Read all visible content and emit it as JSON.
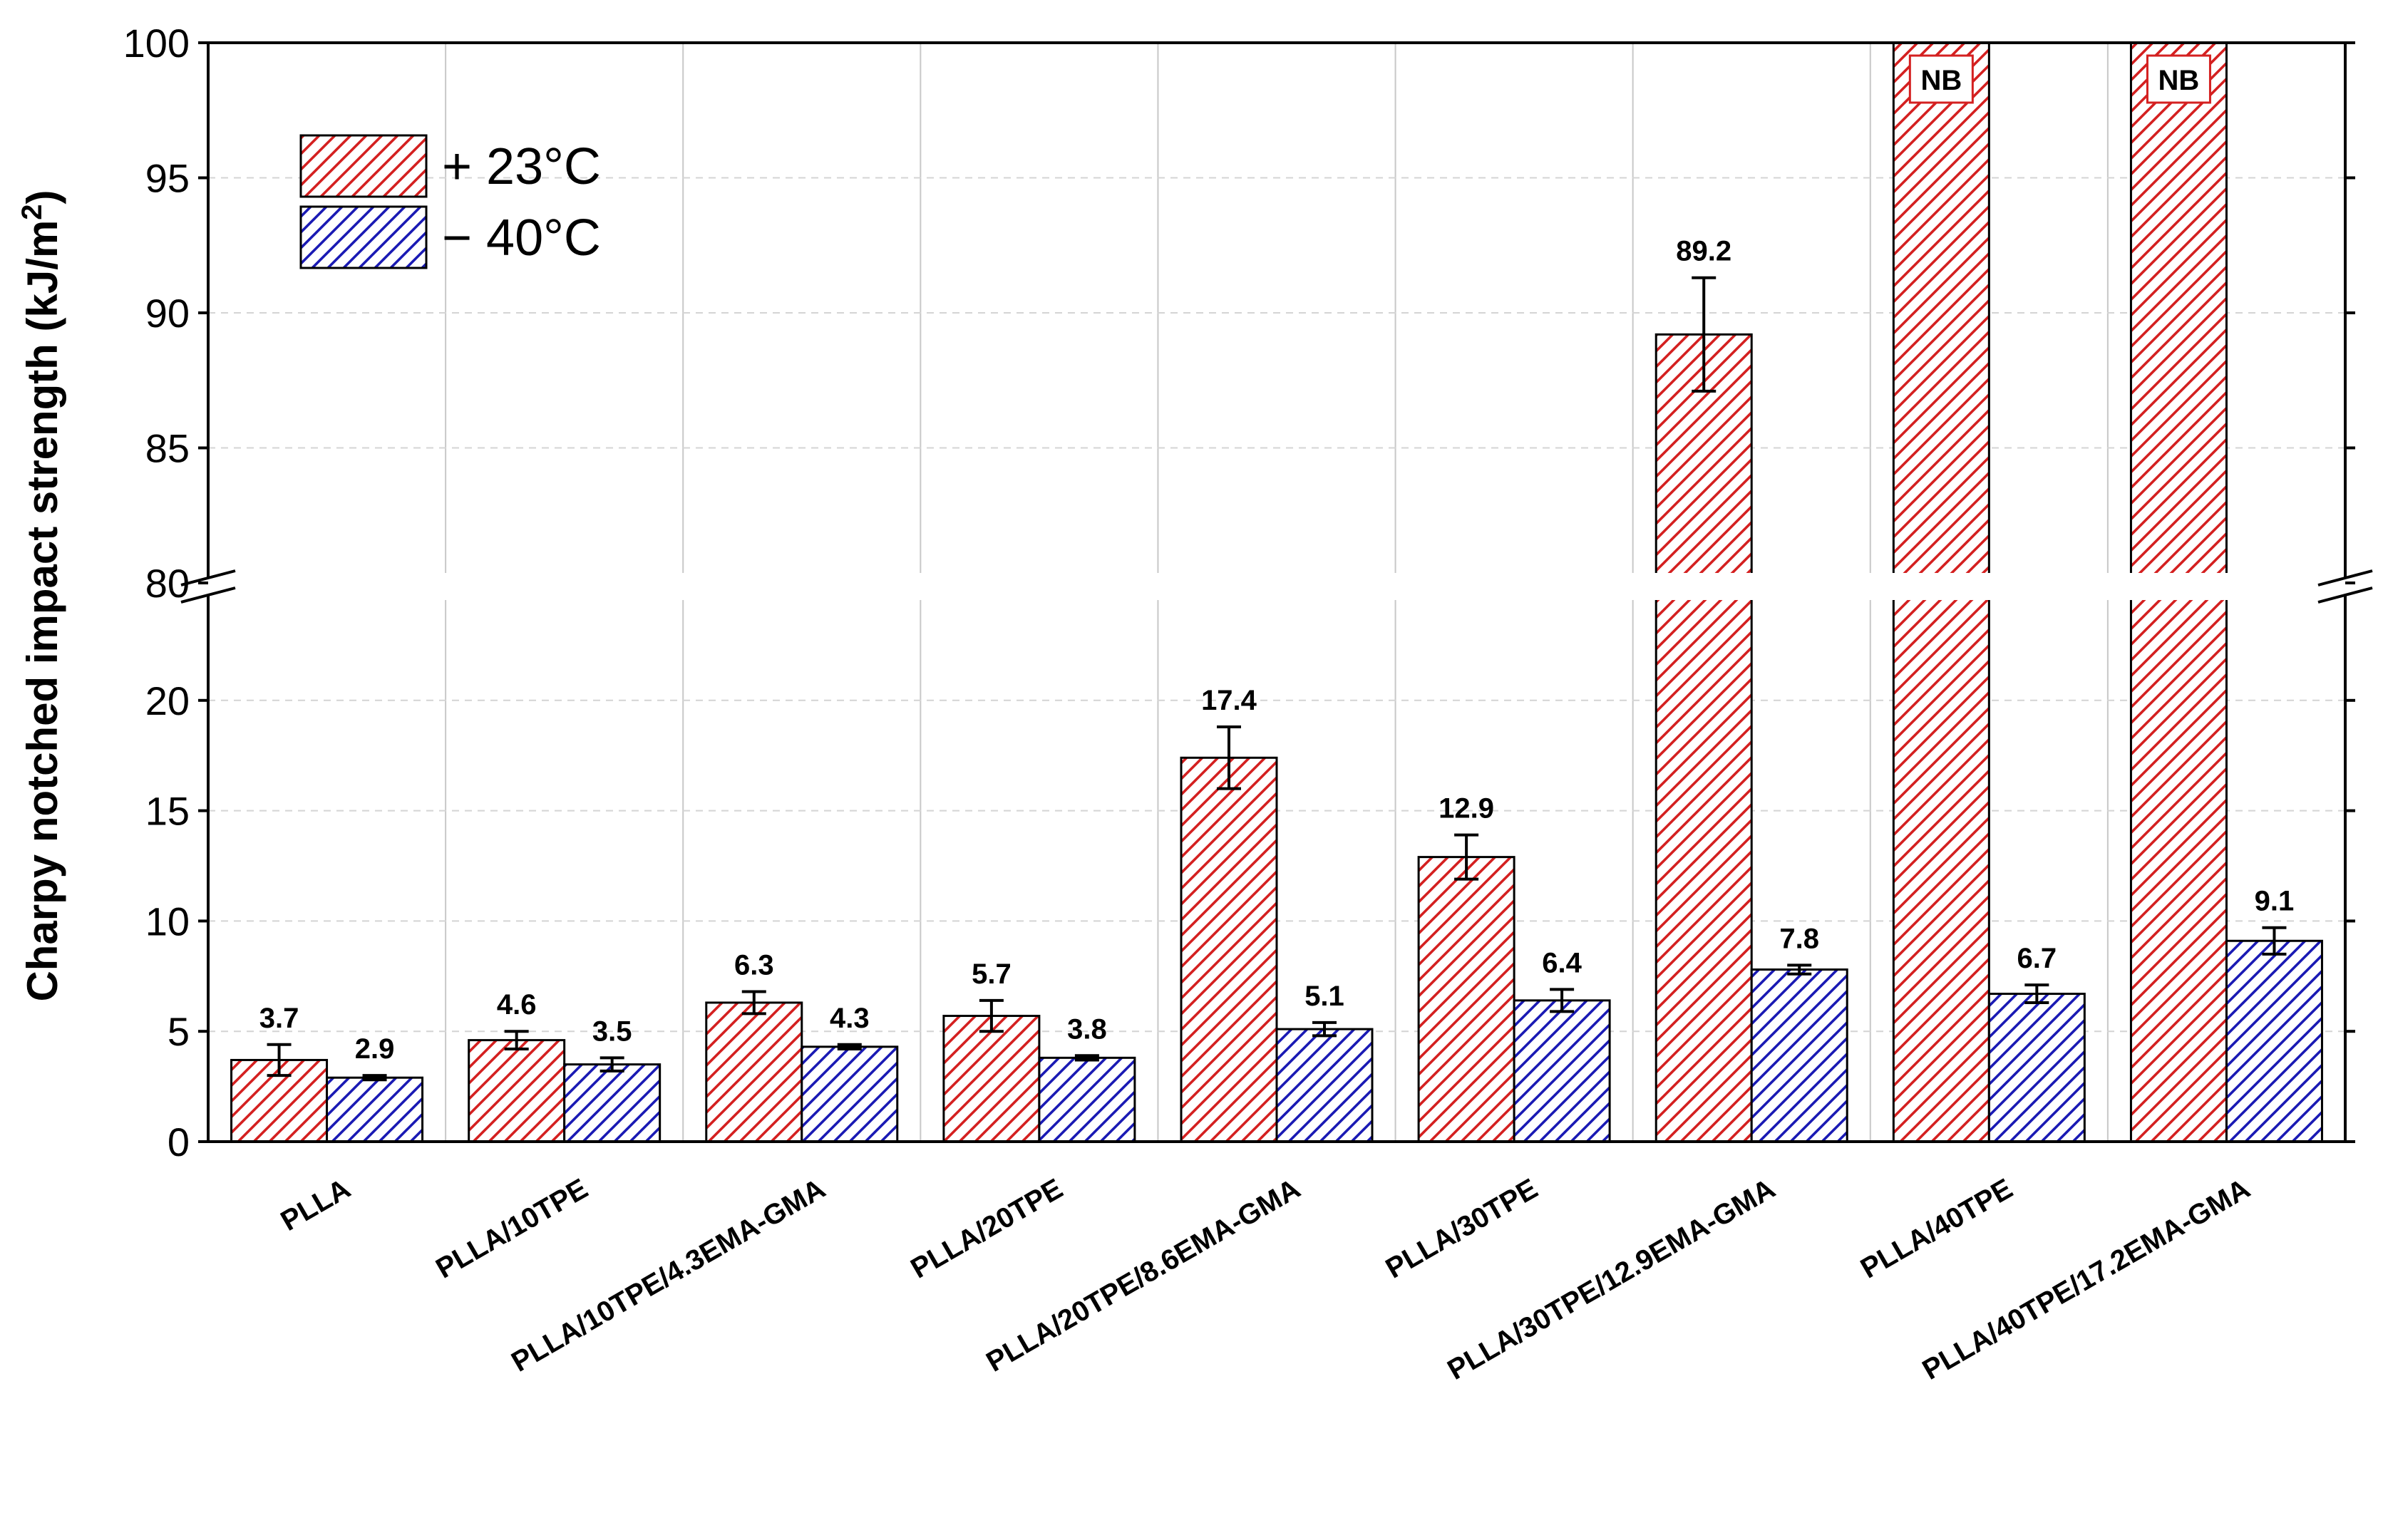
{
  "chart_data": {
    "type": "bar",
    "title": "",
    "xlabel": "",
    "ylabel": {
      "main": "Charpy notched impact strength (kJ/m",
      "sup": "2",
      "end": ")"
    },
    "axis_break": {
      "lower_range": [
        0,
        25
      ],
      "upper_range": [
        80,
        100
      ]
    },
    "lower_ticks": [
      "0",
      "5",
      "10",
      "15",
      "20"
    ],
    "upper_ticks": [
      "80",
      "85",
      "90",
      "95",
      "100"
    ],
    "grid": true,
    "legend_position": "top-left",
    "categories": [
      "PLLA",
      "PLLA/10TPE",
      "PLLA/10TPE/4.3EMA-GMA",
      "PLLA/20TPE",
      "PLLA/20TPE/8.6EMA-GMA",
      "PLLA/30TPE",
      "PLLA/30TPE/12.9EMA-GMA",
      "PLLA/40TPE",
      "PLLA/40TPE/17.2EMA-GMA"
    ],
    "series": [
      {
        "name": "+ 23°C",
        "color": "#d42020",
        "values": [
          3.7,
          4.6,
          6.3,
          5.7,
          17.4,
          12.9,
          89.2,
          null,
          null
        ],
        "errors": [
          0.7,
          0.4,
          0.5,
          0.7,
          1.4,
          1.0,
          2.1,
          null,
          null
        ],
        "labels": [
          "3.7",
          "4.6",
          "6.3",
          "5.7",
          "17.4",
          "12.9",
          "89.2",
          "NB",
          "NB"
        ]
      },
      {
        "name": "− 40°C",
        "color": "#1a1ab4",
        "values": [
          2.9,
          3.5,
          4.3,
          3.8,
          5.1,
          6.4,
          7.8,
          6.7,
          9.1
        ],
        "errors": [
          0.1,
          0.3,
          0.1,
          0.1,
          0.3,
          0.5,
          0.2,
          0.4,
          0.6
        ],
        "labels": [
          "2.9",
          "3.5",
          "4.3",
          "3.8",
          "5.1",
          "6.4",
          "7.8",
          "6.7",
          "9.1"
        ]
      }
    ]
  }
}
